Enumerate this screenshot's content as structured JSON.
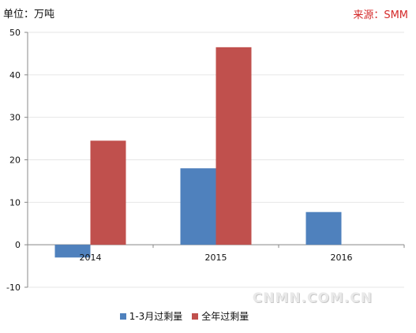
{
  "header": {
    "unit": "单位：万吨",
    "source": "来源：SMM"
  },
  "watermark": "CNMN.COM.CN",
  "legend": {
    "items": [
      {
        "label": "1-3月过剩量",
        "color": "#4f81bd"
      },
      {
        "label": "全年过剩量",
        "color": "#c0504d"
      }
    ]
  },
  "chart_data": {
    "type": "bar",
    "categories": [
      "2014",
      "2015",
      "2016"
    ],
    "series": [
      {
        "name": "1-3月过剩量",
        "color": "#4f81bd",
        "values": [
          -3,
          18,
          7.7
        ]
      },
      {
        "name": "全年过剩量",
        "color": "#c0504d",
        "values": [
          24.5,
          46.5,
          null
        ]
      }
    ],
    "ylim": [
      -10,
      50
    ],
    "yticks": [
      -10,
      0,
      10,
      20,
      30,
      40,
      50
    ],
    "grid": true,
    "legend_position": "bottom"
  }
}
